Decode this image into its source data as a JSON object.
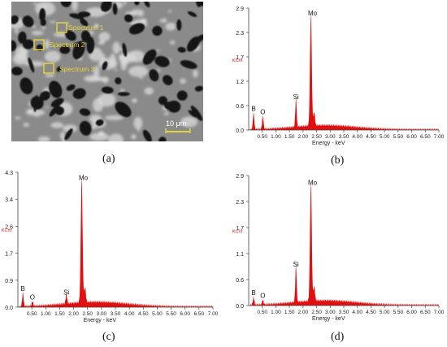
{
  "figure": {
    "captions": [
      "(a)",
      "(b)",
      "(c)",
      "(d)"
    ],
    "sem": {
      "labels": [
        "Spectrum 1",
        "Spectrum 2",
        "Spectrum 3"
      ],
      "scale_bar": "10 μm",
      "label_color": "#e8d23a"
    }
  },
  "chart_data": [
    {
      "type": "area",
      "panel": "(b)",
      "color": "#e01010",
      "xlabel": "Energy - keV",
      "ylabel": "KCnt",
      "xlim": [
        0,
        7.0
      ],
      "ylim": [
        0,
        2.9
      ],
      "xticks": [
        "0.50",
        "1.00",
        "1.50",
        "2.00",
        "2.50",
        "3.00",
        "3.50",
        "4.00",
        "4.50",
        "5.00",
        "5.50",
        "6.00",
        "6.50",
        "7.00"
      ],
      "yticks": [
        "0.0",
        "0.6",
        "1.2",
        "1.7",
        "2.3",
        "2.9"
      ],
      "peaks": [
        {
          "label": "B",
          "x": 0.18,
          "y": 0.38
        },
        {
          "label": "O",
          "x": 0.52,
          "y": 0.3
        },
        {
          "label": "Si",
          "x": 1.74,
          "y": 0.66
        },
        {
          "label": "Mo",
          "x": 2.29,
          "y": 2.65
        }
      ]
    },
    {
      "type": "area",
      "panel": "(c)",
      "color": "#e01010",
      "xlabel": "Energy - keV",
      "ylabel": "KCnt",
      "xlim": [
        0,
        7.0
      ],
      "ylim": [
        0,
        4.3
      ],
      "xticks": [
        "0.50",
        "1.00",
        "1.50",
        "2.00",
        "2.50",
        "3.00",
        "3.50",
        "4.00",
        "4.50",
        "5.00",
        "5.50",
        "6.00",
        "6.50",
        "7.00"
      ],
      "yticks": [
        "0.0",
        "0.9",
        "1.7",
        "2.6",
        "3.4",
        "4.3"
      ],
      "peaks": [
        {
          "label": "B",
          "x": 0.18,
          "y": 0.42
        },
        {
          "label": "O",
          "x": 0.52,
          "y": 0.14
        },
        {
          "label": "Si",
          "x": 1.74,
          "y": 0.3
        },
        {
          "label": "Mo",
          "x": 2.29,
          "y": 3.95
        }
      ]
    },
    {
      "type": "area",
      "panel": "(d)",
      "color": "#e01010",
      "xlabel": "Energy - keV",
      "ylabel": "KCnt",
      "xlim": [
        0,
        7.0
      ],
      "ylim": [
        0,
        2.9
      ],
      "xticks": [
        "0.50",
        "1.00",
        "1.50",
        "2.00",
        "2.50",
        "3.00",
        "3.50",
        "4.00",
        "4.50",
        "5.00",
        "5.50",
        "6.00",
        "6.50",
        "7.00"
      ],
      "yticks": [
        "0.0",
        "0.6",
        "1.1",
        "1.7",
        "2.3",
        "2.9"
      ],
      "peaks": [
        {
          "label": "B",
          "x": 0.18,
          "y": 0.16
        },
        {
          "label": "O",
          "x": 0.52,
          "y": 0.1
        },
        {
          "label": "Si",
          "x": 1.74,
          "y": 0.8
        },
        {
          "label": "Mo",
          "x": 2.29,
          "y": 2.62
        }
      ]
    }
  ]
}
